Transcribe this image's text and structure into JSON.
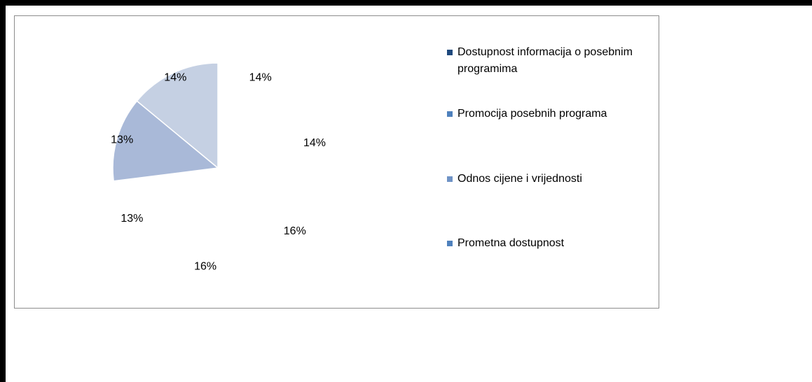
{
  "chart_data": {
    "type": "pie",
    "categories": [
      "Dostupnost informacija o posebnim programima",
      "Promocija posebnih programa",
      "Odnos cijene i vrijednosti",
      "Prometna dostupnost",
      null,
      null,
      null
    ],
    "values": [
      14,
      14,
      16,
      16,
      13,
      13,
      14
    ],
    "value_labels": [
      "14%",
      "14%",
      "16%",
      "16%",
      "13%",
      "13%",
      "14%"
    ],
    "colors": [
      "#ffffff",
      "#ffffff",
      "#ffffff",
      "#ffffff",
      "#ffffff",
      "#a9b9d8",
      "#c5d0e3"
    ],
    "legend_colors": [
      "#1f497d",
      "#4f81bd",
      "#6f93c6",
      "#4f81bd"
    ],
    "legend": "right"
  }
}
